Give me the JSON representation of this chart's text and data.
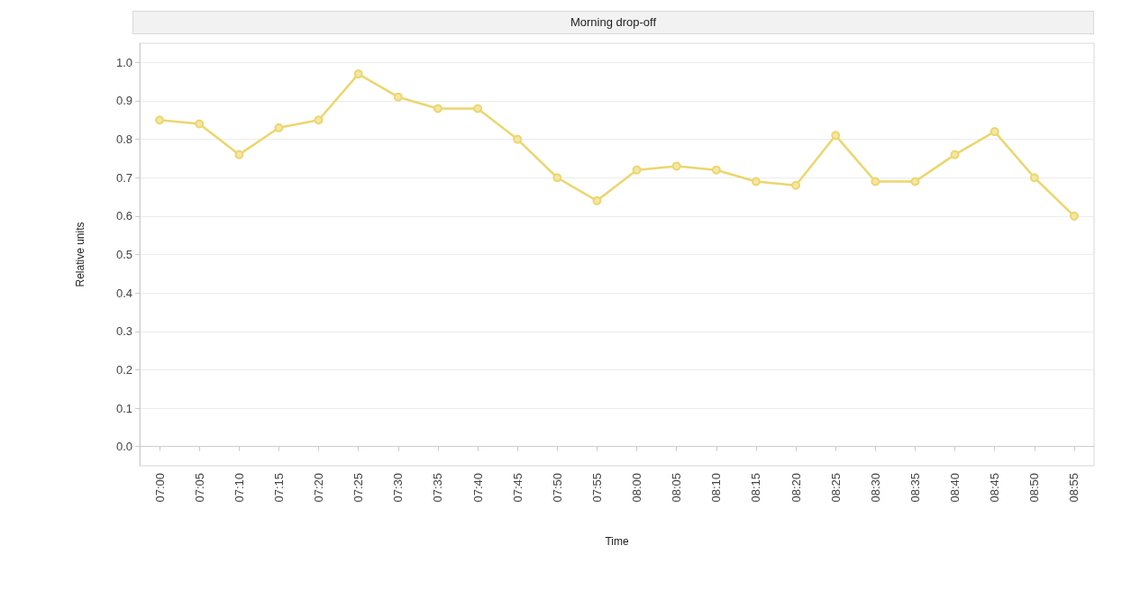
{
  "chart_data": {
    "type": "line",
    "title": "Morning drop-off",
    "xlabel": "Time",
    "ylabel": "Relative units",
    "categories": [
      "07:00",
      "07:05",
      "07:10",
      "07:15",
      "07:20",
      "07:25",
      "07:30",
      "07:35",
      "07:40",
      "07:45",
      "07:50",
      "07:55",
      "08:00",
      "08:05",
      "08:10",
      "08:15",
      "08:20",
      "08:25",
      "08:30",
      "08:35",
      "08:40",
      "08:45",
      "08:50",
      "08:55"
    ],
    "series": [
      {
        "color": "#ecd66e",
        "values": [
          0.85,
          0.84,
          0.76,
          0.83,
          0.85,
          0.97,
          0.91,
          0.88,
          0.88,
          0.8,
          0.7,
          0.64,
          0.72,
          0.73,
          0.72,
          0.69,
          0.68,
          0.81,
          0.69,
          0.69,
          0.76,
          0.82,
          0.7,
          0.6
        ]
      }
    ],
    "ylim": [
      -0.05,
      1.05
    ],
    "yticks": [
      {
        "value": 0,
        "label": "0.0"
      },
      0.1,
      0.2,
      0.3,
      0.4,
      0.5,
      0.6,
      0.7,
      0.8,
      0.9,
      {
        "value": 1,
        "label": "1.0"
      }
    ],
    "grid": "y",
    "marker": "circle",
    "line_style": "solid"
  }
}
